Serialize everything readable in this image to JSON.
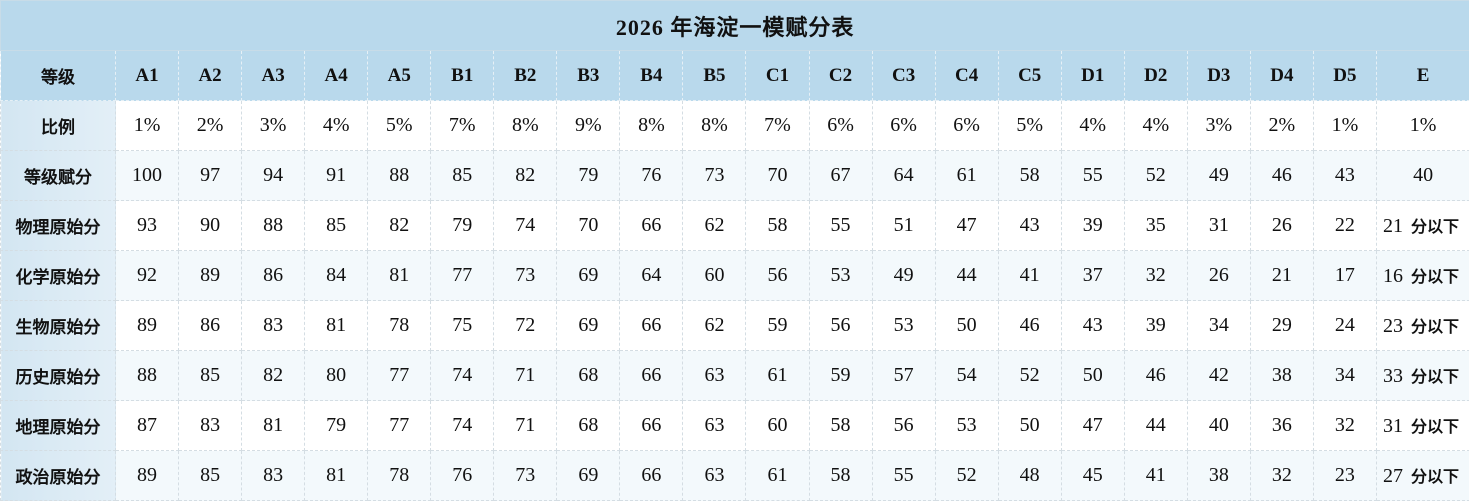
{
  "title": "2026 年海淀一模赋分表",
  "header": {
    "label": "等级",
    "grades": [
      "A1",
      "A2",
      "A3",
      "A4",
      "A5",
      "B1",
      "B2",
      "B3",
      "B4",
      "B5",
      "C1",
      "C2",
      "C3",
      "C4",
      "C5",
      "D1",
      "D2",
      "D3",
      "D4",
      "D5",
      "E"
    ]
  },
  "rows": [
    {
      "label": "比例",
      "values": [
        "1%",
        "2%",
        "3%",
        "4%",
        "5%",
        "7%",
        "8%",
        "9%",
        "8%",
        "8%",
        "7%",
        "6%",
        "6%",
        "6%",
        "5%",
        "4%",
        "4%",
        "3%",
        "2%",
        "1%",
        "1%"
      ]
    },
    {
      "label": "等级赋分",
      "values": [
        "100",
        "97",
        "94",
        "91",
        "88",
        "85",
        "82",
        "79",
        "76",
        "73",
        "70",
        "67",
        "64",
        "61",
        "58",
        "55",
        "52",
        "49",
        "46",
        "43",
        "40"
      ]
    },
    {
      "label": "物理原始分",
      "values": [
        "93",
        "90",
        "88",
        "85",
        "82",
        "79",
        "74",
        "70",
        "66",
        "62",
        "58",
        "55",
        "51",
        "47",
        "43",
        "39",
        "35",
        "31",
        "26",
        "22",
        "21"
      ],
      "suffix": "分以下"
    },
    {
      "label": "化学原始分",
      "values": [
        "92",
        "89",
        "86",
        "84",
        "81",
        "77",
        "73",
        "69",
        "64",
        "60",
        "56",
        "53",
        "49",
        "44",
        "41",
        "37",
        "32",
        "26",
        "21",
        "17",
        "16"
      ],
      "suffix": "分以下"
    },
    {
      "label": "生物原始分",
      "values": [
        "89",
        "86",
        "83",
        "81",
        "78",
        "75",
        "72",
        "69",
        "66",
        "62",
        "59",
        "56",
        "53",
        "50",
        "46",
        "43",
        "39",
        "34",
        "29",
        "24",
        "23"
      ],
      "suffix": "分以下"
    },
    {
      "label": "历史原始分",
      "values": [
        "88",
        "85",
        "82",
        "80",
        "77",
        "74",
        "71",
        "68",
        "66",
        "63",
        "61",
        "59",
        "57",
        "54",
        "52",
        "50",
        "46",
        "42",
        "38",
        "34",
        "33"
      ],
      "suffix": "分以下"
    },
    {
      "label": "地理原始分",
      "values": [
        "87",
        "83",
        "81",
        "79",
        "77",
        "74",
        "71",
        "68",
        "66",
        "63",
        "60",
        "58",
        "56",
        "53",
        "50",
        "47",
        "44",
        "40",
        "36",
        "32",
        "31"
      ],
      "suffix": "分以下"
    },
    {
      "label": "政治原始分",
      "values": [
        "89",
        "85",
        "83",
        "81",
        "78",
        "76",
        "73",
        "69",
        "66",
        "63",
        "61",
        "58",
        "55",
        "52",
        "48",
        "45",
        "41",
        "38",
        "32",
        "23",
        "27"
      ],
      "suffix": "分以下"
    }
  ]
}
